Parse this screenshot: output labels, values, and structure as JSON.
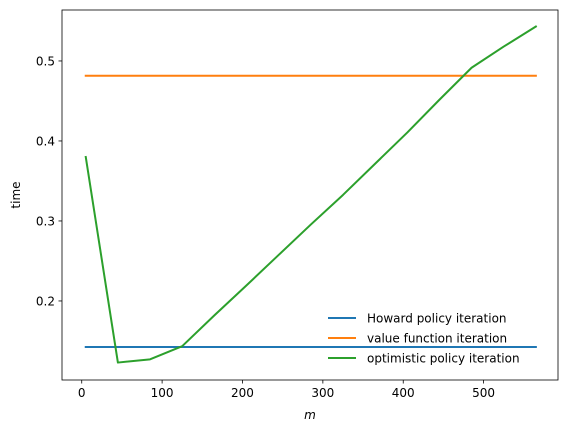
{
  "chart_data": {
    "type": "line",
    "title": "",
    "xlabel": "m",
    "ylabel": "time",
    "xlim": [
      -24.55,
      592.55
    ],
    "ylim": [
      0.1012,
      0.5637
    ],
    "xticks": [
      0,
      100,
      200,
      300,
      400,
      500
    ],
    "yticks": [
      0.2,
      0.3,
      0.4,
      0.5
    ],
    "xtick_labels": [
      "0",
      "100",
      "200",
      "300",
      "400",
      "500"
    ],
    "ytick_labels": [
      "0.2",
      "0.3",
      "0.4",
      "0.5"
    ],
    "grid": false,
    "legend_position": "lower-right",
    "series": [
      {
        "name": "Howard policy iteration",
        "color": "#1f77b4",
        "x": [
          5,
          565
        ],
        "y": [
          0.1425,
          0.1425
        ]
      },
      {
        "name": "value function iteration",
        "color": "#ff7f0e",
        "x": [
          5,
          565
        ],
        "y": [
          0.4815,
          0.4815
        ]
      },
      {
        "name": "optimistic policy iteration",
        "color": "#2ca02c",
        "x": [
          5,
          45,
          85,
          125,
          165,
          205,
          245,
          285,
          325,
          365,
          405,
          445,
          485,
          525,
          565
        ],
        "y": [
          0.38,
          0.123,
          0.127,
          0.1435,
          0.182,
          0.2195,
          0.2575,
          0.2955,
          0.3325,
          0.3715,
          0.4105,
          0.4515,
          0.4915,
          0.518,
          0.543
        ]
      }
    ]
  }
}
